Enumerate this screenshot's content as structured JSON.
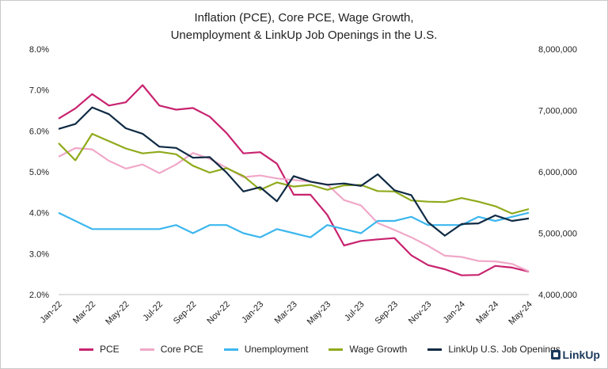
{
  "title_line1": "Inflation (PCE), Core PCE, Wage Growth,",
  "title_line2": "Unemployment & LinkUp Job Openings in the U.S.",
  "logo": "LinkUp",
  "chart_data": {
    "type": "line",
    "title": "Inflation (PCE), Core PCE, Wage Growth, Unemployment & LinkUp Job Openings in the U.S.",
    "x": [
      "Jan-22",
      "Feb-22",
      "Mar-22",
      "Apr-22",
      "May-22",
      "Jun-22",
      "Jul-22",
      "Aug-22",
      "Sep-22",
      "Oct-22",
      "Nov-22",
      "Dec-22",
      "Jan-23",
      "Feb-23",
      "Mar-23",
      "Apr-23",
      "May-23",
      "Jun-23",
      "Jul-23",
      "Aug-23",
      "Sep-23",
      "Oct-23",
      "Nov-23",
      "Dec-23",
      "Jan-24",
      "Feb-24",
      "Mar-24",
      "Apr-24",
      "May-24"
    ],
    "x_tick_labels": [
      "Jan-22",
      "Mar-22",
      "May-22",
      "Jul-22",
      "Sep-22",
      "Nov-22",
      "Jan-23",
      "Mar-23",
      "May-23",
      "Jul-23",
      "Sep-23",
      "Nov-23",
      "Jan-24",
      "Mar-24",
      "May-24"
    ],
    "y_left_ticks": [
      "2.0%",
      "3.0%",
      "4.0%",
      "5.0%",
      "6.0%",
      "7.0%",
      "8.0%"
    ],
    "y_left_lim": [
      2.0,
      8.0
    ],
    "y_right_ticks": [
      "4,000,000",
      "5,000,000",
      "6,000,000",
      "7,000,000",
      "8,000,000"
    ],
    "y_right_lim": [
      4000000,
      8000000
    ],
    "legend_position": "bottom",
    "grid": false,
    "series": [
      {
        "name": "PCE",
        "color": "#c8236f",
        "axis": "left",
        "values": [
          6.3,
          6.55,
          6.9,
          6.62,
          6.7,
          7.12,
          6.62,
          6.52,
          6.56,
          6.35,
          5.95,
          5.45,
          5.48,
          5.2,
          4.44,
          4.44,
          3.95,
          3.2,
          3.31,
          3.35,
          3.38,
          2.96,
          2.72,
          2.62,
          2.47,
          2.48,
          2.7,
          2.66,
          2.56
        ]
      },
      {
        "name": "Core PCE",
        "color": "#f0a8c8",
        "axis": "left",
        "values": [
          5.37,
          5.58,
          5.55,
          5.27,
          5.08,
          5.18,
          4.97,
          5.18,
          5.46,
          5.32,
          5.1,
          4.87,
          4.91,
          4.84,
          4.8,
          4.76,
          4.69,
          4.31,
          4.18,
          3.75,
          3.58,
          3.4,
          3.19,
          2.95,
          2.92,
          2.82,
          2.81,
          2.75,
          2.57
        ]
      },
      {
        "name": "Unemployment",
        "color": "#3db7ee",
        "axis": "left",
        "values": [
          4.0,
          3.8,
          3.6,
          3.6,
          3.6,
          3.6,
          3.6,
          3.7,
          3.5,
          3.7,
          3.7,
          3.5,
          3.4,
          3.6,
          3.5,
          3.4,
          3.7,
          3.6,
          3.5,
          3.8,
          3.8,
          3.9,
          3.7,
          3.7,
          3.7,
          3.9,
          3.8,
          3.9,
          4.0
        ]
      },
      {
        "name": "Wage Growth",
        "color": "#8faa1c",
        "axis": "left",
        "values": [
          5.7,
          5.28,
          5.93,
          5.75,
          5.57,
          5.45,
          5.49,
          5.43,
          5.15,
          4.98,
          5.09,
          4.9,
          4.56,
          4.74,
          4.64,
          4.68,
          4.56,
          4.67,
          4.68,
          4.53,
          4.52,
          4.3,
          4.27,
          4.26,
          4.36,
          4.27,
          4.16,
          3.98,
          4.09
        ]
      },
      {
        "name": "LinkUp U.S. Job Openings",
        "color": "#0f2a44",
        "axis": "right",
        "values": [
          6700000,
          6780000,
          7050000,
          6940000,
          6710000,
          6620000,
          6410000,
          6390000,
          6230000,
          6240000,
          5990000,
          5680000,
          5750000,
          5520000,
          5930000,
          5840000,
          5790000,
          5810000,
          5770000,
          5960000,
          5700000,
          5620000,
          5180000,
          4960000,
          5150000,
          5160000,
          5290000,
          5200000,
          5240000
        ]
      }
    ]
  }
}
